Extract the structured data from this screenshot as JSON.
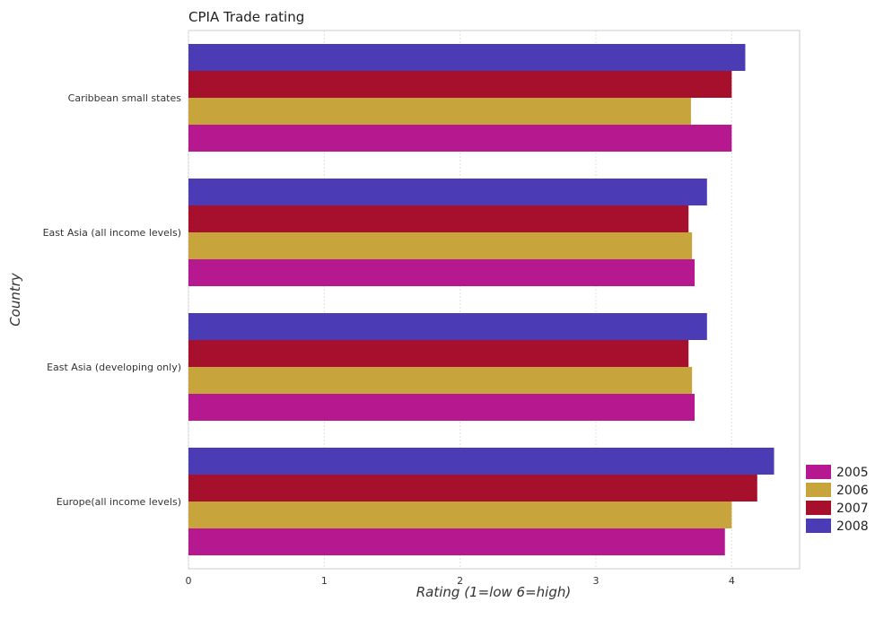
{
  "chart_data": {
    "type": "bar",
    "orientation": "horizontal",
    "title": "CPIA Trade rating",
    "xlabel": "Rating (1=low 6=high)",
    "ylabel": "Country",
    "categories": [
      "Caribbean small states",
      "East Asia (all income levels)",
      "East Asia (developing only)",
      "Europe(all income levels)"
    ],
    "series": [
      {
        "name": "2005",
        "color": "#b5188f",
        "values": [
          4.0,
          3.727,
          3.727,
          3.95
        ]
      },
      {
        "name": "2006",
        "color": "#c7a53c",
        "values": [
          3.7,
          3.708,
          3.708,
          4.0
        ]
      },
      {
        "name": "2007",
        "color": "#a6102d",
        "values": [
          4.0,
          3.682,
          3.682,
          4.188
        ]
      },
      {
        "name": "2008",
        "color": "#4b3bb4",
        "values": [
          4.1,
          3.818,
          3.818,
          4.312
        ]
      }
    ],
    "xlim": [
      0,
      4.5
    ],
    "xticks": [
      "0",
      "1",
      "2",
      "3",
      "4"
    ],
    "grid": true,
    "legend_position": "bottom-right"
  }
}
